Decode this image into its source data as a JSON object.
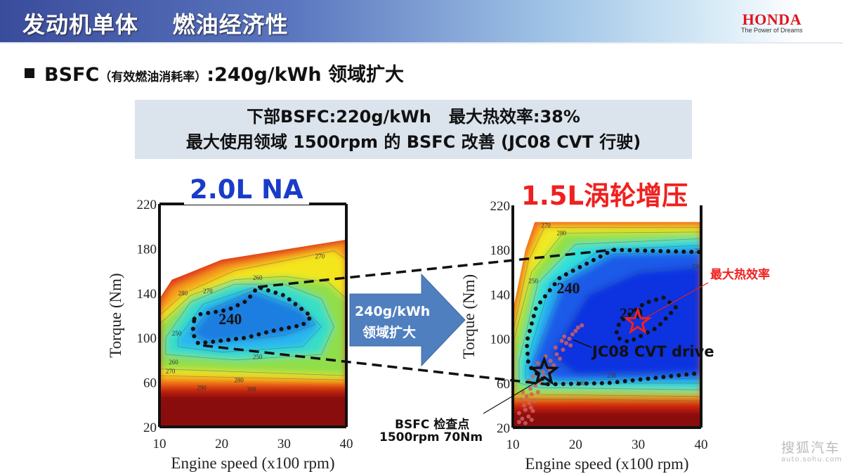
{
  "header": {
    "title": "发动机单体    燃油经济性",
    "logo_word": "HONDA",
    "logo_tagline": "The Power of Dreams"
  },
  "bullet": {
    "prefix": "BSFC",
    "paren": "（有效燃油消耗率）",
    "suffix": ":240g/kWh 领域扩大"
  },
  "infobox": {
    "line1": "下部BSFC:220g/kWh   最大热效率:38%",
    "line2": "最大使用领域 1500rpm 的 BSFC 改善 (JC08 CVT 行驶)"
  },
  "arrow": {
    "line1": "240g/kWh",
    "line2": "领域扩大",
    "color": "#4f7fbf"
  },
  "annotations": {
    "max_thermal": "最大热效率",
    "cvt_drive": "JC08 CVT drive",
    "check_point_1": "BSFC 检查点",
    "check_point_2": "1500rpm 70Nm"
  },
  "watermark": {
    "cn": "搜狐汽车",
    "url": "auto.sohu.com"
  },
  "chart_data": [
    {
      "type": "heatmap",
      "title": "2.0L NA",
      "title_color": "#1a3cc8",
      "xlabel": "Engine  speed (x100 rpm)",
      "ylabel": "Torque (Nm)",
      "xlim": [
        10,
        40
      ],
      "ylim": [
        20,
        220
      ],
      "xticks": [
        10,
        20,
        30,
        40
      ],
      "yticks": [
        20,
        60,
        100,
        140,
        180,
        220
      ],
      "envelope": [
        [
          10,
          20
        ],
        [
          10,
          135
        ],
        [
          12,
          152
        ],
        [
          20,
          170
        ],
        [
          40,
          188
        ],
        [
          40,
          20
        ]
      ],
      "layers": [
        {
          "color": "#e23a1a",
          "poly": [
            [
              10,
              20
            ],
            [
              10,
              135
            ],
            [
              12,
              152
            ],
            [
              20,
              170
            ],
            [
              40,
              188
            ],
            [
              40,
              20
            ]
          ]
        },
        {
          "color": "#f6a01c",
          "poly": [
            [
              10,
              60
            ],
            [
              10,
              128
            ],
            [
              12,
              145
            ],
            [
              20,
              165
            ],
            [
              40,
              185
            ],
            [
              40,
              58
            ]
          ]
        },
        {
          "color": "#f4e61e",
          "poly": [
            [
              10,
              66
            ],
            [
              10,
              120
            ],
            [
              14,
              140
            ],
            [
              22,
              160
            ],
            [
              38,
              178
            ],
            [
              40,
              170
            ],
            [
              40,
              62
            ]
          ]
        },
        {
          "color": "#90de4a",
          "poly": [
            [
              10,
              72
            ],
            [
              10,
              112
            ],
            [
              15,
              138
            ],
            [
              22,
              152
            ],
            [
              30,
              155
            ],
            [
              37,
              150
            ],
            [
              40,
              135
            ],
            [
              40,
              66
            ]
          ]
        },
        {
          "color": "#38dfc6",
          "poly": [
            [
              11,
              85
            ],
            [
              11,
              100
            ],
            [
              15,
              132
            ],
            [
              22,
              148
            ],
            [
              30,
              148
            ],
            [
              36,
              135
            ],
            [
              38,
              110
            ],
            [
              36,
              85
            ],
            [
              22,
              80
            ]
          ]
        },
        {
          "color": "#2ab6f0",
          "poly": [
            [
              13,
              92
            ],
            [
              13,
              100
            ],
            [
              17,
              130
            ],
            [
              25,
              145
            ],
            [
              32,
              132
            ],
            [
              36,
              110
            ],
            [
              33,
              92
            ],
            [
              20,
              87
            ]
          ]
        },
        {
          "color": "#1e7ee0",
          "poly": [
            [
              18,
              95
            ],
            [
              15,
              103
            ],
            [
              18,
              125
            ],
            [
              25,
              142
            ],
            [
              33,
              125
            ],
            [
              35,
              112
            ],
            [
              30,
              102
            ]
          ]
        }
      ],
      "bottom_bands": [
        {
          "color": "#8a0f08",
          "from": 20,
          "to": 50
        },
        {
          "color": "#c8200f",
          "from": 50,
          "to": 56
        },
        {
          "color": "#ee5a18",
          "from": 56,
          "to": 61
        }
      ],
      "highlight_contour": {
        "value": 240,
        "points": [
          [
            15.6,
            117
          ],
          [
            16.5,
            121
          ],
          [
            21,
            125
          ],
          [
            24,
            133
          ],
          [
            25.8,
            145.5
          ],
          [
            30,
            138
          ],
          [
            34.4,
            119
          ],
          [
            33,
            111.5
          ],
          [
            28,
            106
          ],
          [
            23.9,
            100
          ],
          [
            18,
            96
          ],
          [
            16.2,
            95
          ],
          [
            15.3,
            104
          ],
          [
            15.6,
            117
          ]
        ]
      },
      "highlight_label": {
        "text": "240",
        "x": 19.5,
        "y": 112
      },
      "contour_labels": [
        {
          "text": "280",
          "x": 13,
          "y": 138
        },
        {
          "text": "270",
          "x": 17,
          "y": 140
        },
        {
          "text": "260",
          "x": 25,
          "y": 152
        },
        {
          "text": "270",
          "x": 35,
          "y": 171
        },
        {
          "text": "250",
          "x": 12,
          "y": 102
        },
        {
          "text": "250",
          "x": 25,
          "y": 81
        },
        {
          "text": "260",
          "x": 11.5,
          "y": 76
        },
        {
          "text": "270",
          "x": 11,
          "y": 68
        },
        {
          "text": "280",
          "x": 22,
          "y": 60
        },
        {
          "text": "290",
          "x": 16,
          "y": 53
        },
        {
          "text": "300",
          "x": 24,
          "y": 52
        }
      ]
    },
    {
      "type": "heatmap",
      "title": "1.5L涡轮增压",
      "title_color": "#f02020",
      "xlabel": "Engine  speed (x100 rpm)",
      "ylabel": "Torque (Nm)",
      "xlim": [
        10,
        40
      ],
      "ylim": [
        20,
        220
      ],
      "xticks": [
        10,
        20,
        30,
        40
      ],
      "yticks": [
        20,
        60,
        100,
        140,
        180,
        220
      ],
      "envelope": [
        [
          10,
          20
        ],
        [
          10,
          125
        ],
        [
          12,
          180
        ],
        [
          13.5,
          205
        ],
        [
          40,
          205
        ],
        [
          40,
          20
        ]
      ],
      "layers": [
        {
          "color": "#ef5a1c",
          "poly": [
            [
              10,
              20
            ],
            [
              10,
              125
            ],
            [
              12,
              180
            ],
            [
              13.5,
              205
            ],
            [
              40,
              205
            ],
            [
              40,
              20
            ]
          ]
        },
        {
          "color": "#f7b01c",
          "poly": [
            [
              10,
              42
            ],
            [
              10,
              110
            ],
            [
              12,
              175
            ],
            [
              14,
              203
            ],
            [
              40,
              203
            ],
            [
              40,
              38
            ]
          ]
        },
        {
          "color": "#f0ea20",
          "poly": [
            [
              10,
              46
            ],
            [
              10,
              105
            ],
            [
              12.5,
              170
            ],
            [
              15,
              200
            ],
            [
              40,
              200
            ],
            [
              40,
              44
            ]
          ]
        },
        {
          "color": "#90e048",
          "poly": [
            [
              10,
              50
            ],
            [
              10,
              95
            ],
            [
              13,
              160
            ],
            [
              18,
              195
            ],
            [
              40,
              196
            ],
            [
              40,
              48
            ]
          ]
        },
        {
          "color": "#30e0d8",
          "poly": [
            [
              11,
              60
            ],
            [
              11,
              80
            ],
            [
              14,
              150
            ],
            [
              20,
              185
            ],
            [
              40,
              190
            ],
            [
              40,
              54
            ],
            [
              14,
              56
            ]
          ]
        },
        {
          "color": "#28a8f0",
          "poly": [
            [
              12,
              64
            ],
            [
              12,
              75
            ],
            [
              16,
              150
            ],
            [
              24,
              180
            ],
            [
              40,
              184
            ],
            [
              40,
              60
            ],
            [
              16,
              60
            ]
          ]
        },
        {
          "color": "#1a5ae8",
          "poly": [
            [
              17,
              63
            ],
            [
              13,
              75
            ],
            [
              18,
              150
            ],
            [
              26,
              176
            ],
            [
              40,
              178
            ],
            [
              40,
              64
            ]
          ]
        },
        {
          "color": "#1030e0",
          "poly": [
            [
              20,
              68
            ],
            [
              16,
              85
            ],
            [
              22,
              140
            ],
            [
              30,
              160
            ],
            [
              40,
              165
            ],
            [
              40,
              70
            ]
          ]
        }
      ],
      "bottom_bands": [
        {
          "color": "#8a0f08",
          "from": 20,
          "to": 36
        },
        {
          "color": "#d0240f",
          "from": 36,
          "to": 44
        },
        {
          "color": "#f07a18",
          "from": 44,
          "to": 49
        }
      ],
      "highlight_contour": {
        "value": 240,
        "points": [
          [
            39.7,
            178
          ],
          [
            26,
            180
          ],
          [
            17.5,
            155
          ],
          [
            13.7,
            128
          ],
          [
            12.2,
            97
          ],
          [
            12.5,
            76
          ],
          [
            15.6,
            59
          ],
          [
            25,
            60
          ],
          [
            39.7,
            69
          ]
        ]
      },
      "highlight_label": {
        "text": "240",
        "x": 17,
        "y": 141
      },
      "inner_contour": {
        "value": 220,
        "points": [
          [
            27,
            100
          ],
          [
            28.5,
            97
          ],
          [
            33,
            110
          ],
          [
            36,
            128
          ],
          [
            34,
            137
          ],
          [
            31,
            132
          ],
          [
            27,
            115
          ],
          [
            26.5,
            105
          ],
          [
            27,
            100
          ]
        ]
      },
      "inner_label": {
        "text": "220",
        "x": 27,
        "y": 118
      },
      "max_efficiency_point": {
        "x": 29.9,
        "y": 115
      },
      "check_point": {
        "x": 15,
        "y": 70
      },
      "cvt_drive_points": [
        [
          11,
          25
        ],
        [
          11.5,
          28
        ],
        [
          12,
          24
        ],
        [
          12.5,
          30
        ],
        [
          11,
          33
        ],
        [
          12,
          36
        ],
        [
          13,
          27
        ],
        [
          11.8,
          40
        ],
        [
          12.6,
          42
        ],
        [
          13.2,
          35
        ],
        [
          11.3,
          45
        ],
        [
          12.2,
          48
        ],
        [
          13,
          50
        ],
        [
          13.5,
          44
        ],
        [
          12.8,
          55
        ],
        [
          13.6,
          58
        ],
        [
          14,
          52
        ],
        [
          12.5,
          62
        ],
        [
          13.2,
          66
        ],
        [
          14.2,
          64
        ],
        [
          14.8,
          70
        ],
        [
          15.5,
          74
        ],
        [
          14,
          78
        ],
        [
          16,
          80
        ],
        [
          16.5,
          76
        ],
        [
          15.2,
          84
        ],
        [
          17,
          86
        ],
        [
          17.5,
          82
        ],
        [
          16.8,
          92
        ],
        [
          18,
          90
        ],
        [
          18.5,
          96
        ],
        [
          17.8,
          98
        ],
        [
          19,
          100
        ],
        [
          19.5,
          104
        ],
        [
          20,
          107
        ],
        [
          19.2,
          94
        ],
        [
          18.2,
          102
        ],
        [
          20.4,
          110
        ],
        [
          21,
          112
        ],
        [
          15,
          66
        ],
        [
          13.8,
          72
        ],
        [
          11.6,
          52
        ],
        [
          12.9,
          38
        ],
        [
          14.5,
          60
        ],
        [
          16,
          72
        ]
      ],
      "contour_labels": [
        {
          "text": "270",
          "x": 14.5,
          "y": 200
        },
        {
          "text": "280",
          "x": 17,
          "y": 193
        },
        {
          "text": "250",
          "x": 12.5,
          "y": 150
        },
        {
          "text": "230",
          "x": 39,
          "y": 177
        },
        {
          "text": "230",
          "x": 38.5,
          "y": 163
        },
        {
          "text": "230",
          "x": 25,
          "y": 65
        },
        {
          "text": "240",
          "x": 20,
          "y": 58
        }
      ]
    }
  ]
}
